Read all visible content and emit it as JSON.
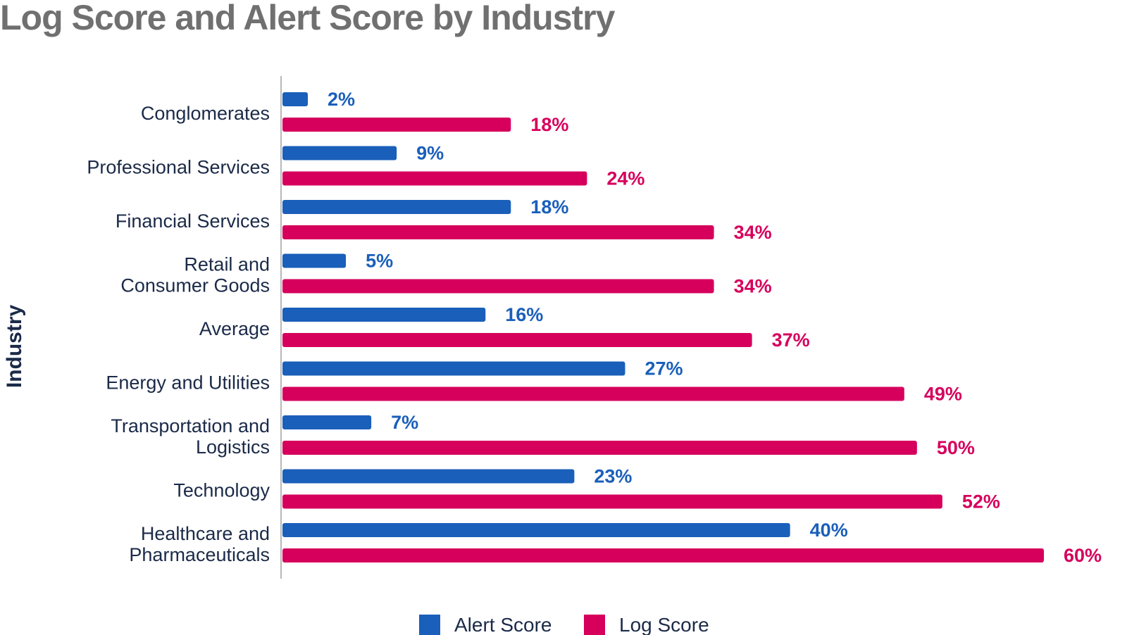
{
  "chart_data": {
    "type": "bar",
    "orientation": "horizontal",
    "title": "Log Score and Alert Score by Industry",
    "ylabel": "Industry",
    "xlabel": "",
    "categories": [
      [
        "Conglomerates"
      ],
      [
        "Professional Services"
      ],
      [
        "Financial Services"
      ],
      [
        "Retail and",
        "Consumer Goods"
      ],
      [
        "Average"
      ],
      [
        "Energy and Utilities"
      ],
      [
        "Transportation and",
        "Logistics"
      ],
      [
        "Technology"
      ],
      [
        "Healthcare and",
        "Pharmaceuticals"
      ]
    ],
    "series": [
      {
        "name": "Alert Score",
        "color": "#1a5fba",
        "values": [
          2,
          9,
          18,
          5,
          16,
          27,
          7,
          23,
          40
        ]
      },
      {
        "name": "Log Score",
        "color": "#d6005c",
        "values": [
          18,
          24,
          34,
          34,
          37,
          49,
          50,
          52,
          60
        ]
      }
    ],
    "value_suffix": "%",
    "xlim": [
      0,
      60
    ],
    "grid": false,
    "legend_position": "bottom"
  }
}
